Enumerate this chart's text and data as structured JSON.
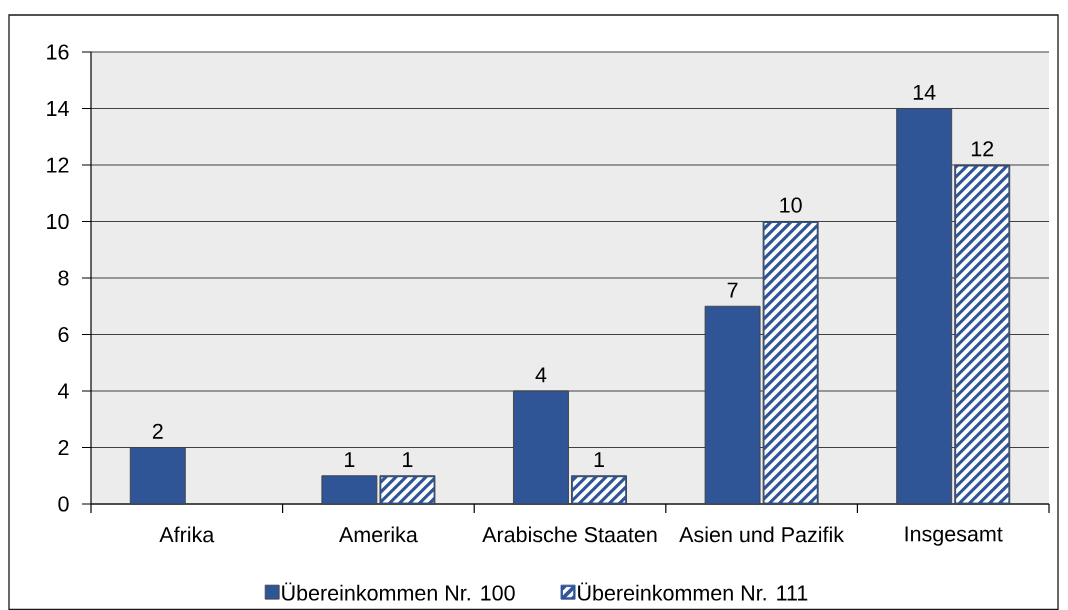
{
  "chart_data": {
    "type": "bar",
    "categories": [
      "Afrika",
      "Amerika",
      "Arabische Staaten",
      "Asien und Pazifik",
      "Insgesamt"
    ],
    "series": [
      {
        "name": "Übereinkommen Nr. 100",
        "color": "#2f5597",
        "values": [
          2,
          1,
          4,
          7,
          14
        ]
      },
      {
        "name": "Übereinkommen Nr. 111",
        "color": "#2f5597",
        "values": [
          null,
          1,
          1,
          10,
          12
        ]
      }
    ],
    "ylim": [
      0,
      16
    ],
    "yticks": [
      0,
      2,
      4,
      6,
      8,
      10,
      12,
      14,
      16
    ],
    "grid": "y",
    "legend": "bottom",
    "data_labels": true
  }
}
